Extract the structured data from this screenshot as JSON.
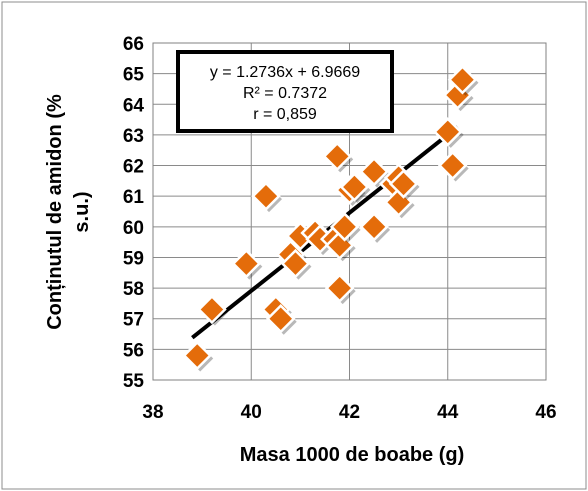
{
  "chart_data": {
    "type": "scatter",
    "xlabel": "Masa 1000 de boabe (g)",
    "ylabel_lines": [
      "Conținutul de amidon (%",
      "s.u.)"
    ],
    "xlim": [
      38,
      46
    ],
    "ylim": [
      55,
      66
    ],
    "xticks": [
      38,
      40,
      42,
      44,
      46
    ],
    "yticks": [
      55,
      56,
      57,
      58,
      59,
      60,
      61,
      62,
      63,
      64,
      65,
      66
    ],
    "grid": true,
    "series": [
      {
        "marker": "diamond",
        "color": "#E46C0A",
        "points": [
          {
            "x": 38.9,
            "y": 55.8
          },
          {
            "x": 39.2,
            "y": 57.3
          },
          {
            "x": 39.9,
            "y": 58.8
          },
          {
            "x": 40.3,
            "y": 61.0
          },
          {
            "x": 40.5,
            "y": 57.3
          },
          {
            "x": 40.6,
            "y": 57.0
          },
          {
            "x": 40.8,
            "y": 59.1
          },
          {
            "x": 40.9,
            "y": 58.8
          },
          {
            "x": 41.0,
            "y": 59.7
          },
          {
            "x": 41.3,
            "y": 59.8
          },
          {
            "x": 41.4,
            "y": 59.6
          },
          {
            "x": 41.7,
            "y": 59.6
          },
          {
            "x": 41.75,
            "y": 62.3
          },
          {
            "x": 41.8,
            "y": 59.4
          },
          {
            "x": 41.8,
            "y": 58.0
          },
          {
            "x": 41.9,
            "y": 60.0
          },
          {
            "x": 42.0,
            "y": 61.2
          },
          {
            "x": 42.1,
            "y": 61.3
          },
          {
            "x": 42.5,
            "y": 60.0
          },
          {
            "x": 42.5,
            "y": 61.8
          },
          {
            "x": 42.9,
            "y": 61.4
          },
          {
            "x": 43.0,
            "y": 61.6
          },
          {
            "x": 43.0,
            "y": 60.8
          },
          {
            "x": 43.1,
            "y": 61.4
          },
          {
            "x": 44.0,
            "y": 63.1
          },
          {
            "x": 44.1,
            "y": 62.0
          },
          {
            "x": 44.2,
            "y": 64.3
          },
          {
            "x": 44.3,
            "y": 64.8
          }
        ]
      }
    ],
    "trendline": {
      "slope": 1.2736,
      "intercept": 6.9669,
      "x_range": [
        38.8,
        44.2
      ],
      "color": "#000000"
    },
    "annotation_lines": [
      "y = 1.2736x + 6.9669",
      "R² = 0.7372",
      "r = 0,859"
    ]
  }
}
